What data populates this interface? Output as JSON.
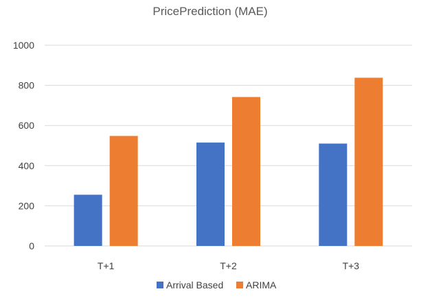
{
  "chart_data": {
    "type": "bar",
    "title": "PricePrediction (MAE)",
    "xlabel": "",
    "ylabel": "",
    "categories": [
      "T+1",
      "T+2",
      "T+3"
    ],
    "series": [
      {
        "name": "Arrival Based",
        "values": [
          255,
          515,
          510
        ],
        "color": "#4472C4"
      },
      {
        "name": "ARIMA",
        "values": [
          548,
          742,
          838
        ],
        "color": "#ED7D31"
      }
    ],
    "ylim": [
      0,
      1000
    ],
    "yticks": [
      0,
      200,
      400,
      600,
      800,
      1000
    ],
    "grid": true,
    "legend_position": "bottom"
  }
}
